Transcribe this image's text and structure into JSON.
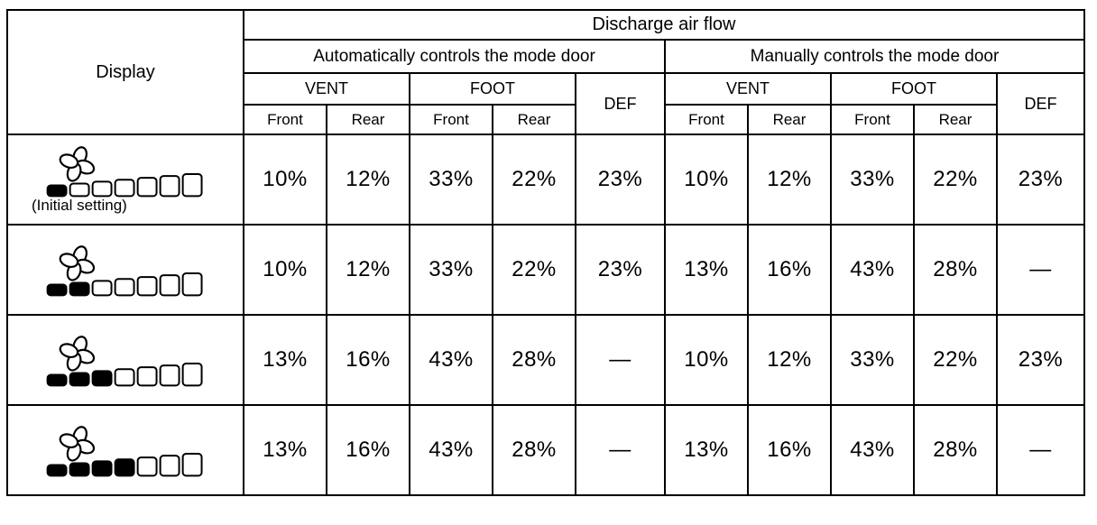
{
  "table": {
    "title": "Discharge air flow",
    "display_header": "Display",
    "auto_section_label": "Automatically controls the mode door",
    "manual_section_label": "Manually controls the mode door",
    "vent_label": "VENT",
    "foot_label": "FOOT",
    "def_label": "DEF",
    "front_label": "Front",
    "rear_label": "Rear",
    "total_segments": 7,
    "rows": [
      {
        "fan_level": 1,
        "note": "(Initial setting)",
        "auto": [
          "10%",
          "12%",
          "33%",
          "22%",
          "23%"
        ],
        "manual": [
          "10%",
          "12%",
          "33%",
          "22%",
          "23%"
        ]
      },
      {
        "fan_level": 2,
        "note": "",
        "auto": [
          "10%",
          "12%",
          "33%",
          "22%",
          "23%"
        ],
        "manual": [
          "13%",
          "16%",
          "43%",
          "28%",
          "—"
        ]
      },
      {
        "fan_level": 3,
        "note": "",
        "auto": [
          "13%",
          "16%",
          "43%",
          "28%",
          "—"
        ],
        "manual": [
          "10%",
          "12%",
          "33%",
          "22%",
          "23%"
        ]
      },
      {
        "fan_level": 4,
        "note": "",
        "auto": [
          "13%",
          "16%",
          "43%",
          "28%",
          "—"
        ],
        "manual": [
          "13%",
          "16%",
          "43%",
          "28%",
          "—"
        ]
      }
    ]
  },
  "colors": {
    "border": "#000000",
    "background": "#ffffff",
    "text": "#000000",
    "segment_filled": "#000000",
    "segment_empty": "#ffffff"
  }
}
